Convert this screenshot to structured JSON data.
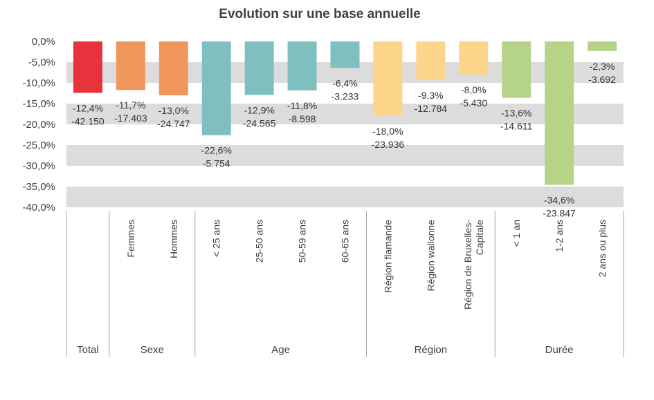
{
  "chart_data": {
    "type": "bar",
    "title": "Evolution sur une base annuelle",
    "xlabel": "",
    "ylabel": "",
    "ylim": [
      -40,
      0
    ],
    "yticks": [
      "0,0%",
      "-5,0%",
      "-10,0%",
      "-15,0%",
      "-20,0%",
      "-25,0%",
      "-30,0%",
      "-35,0%",
      "-40,0%"
    ],
    "grid": "alternating horizontal bands",
    "legend": "none",
    "categories": [
      {
        "label": "",
        "group": "Total",
        "value": -12.4,
        "pct_label": "-12,4%",
        "count_label": "-42.150",
        "color": "#E8323C"
      },
      {
        "label": "Femmes",
        "group": "Sexe",
        "value": -11.7,
        "pct_label": "-11,7%",
        "count_label": "-17.403",
        "color": "#F0975D"
      },
      {
        "label": "Hommes",
        "group": "Sexe",
        "value": -13.0,
        "pct_label": "-13,0%",
        "count_label": "-24.747",
        "color": "#F0975D"
      },
      {
        "label": "< 25 ans",
        "group": "Age",
        "value": -22.6,
        "pct_label": "-22,6%",
        "count_label": "-5.754",
        "color": "#7FBFBF"
      },
      {
        "label": "25-50 ans",
        "group": "Age",
        "value": -12.9,
        "pct_label": "-12,9%",
        "count_label": "-24.565",
        "color": "#7FBFBF"
      },
      {
        "label": "50-59 ans",
        "group": "Age",
        "value": -11.8,
        "pct_label": "-11,8%",
        "count_label": "-8.598",
        "color": "#7FBFBF"
      },
      {
        "label": "60-65 ans",
        "group": "Age",
        "value": -6.4,
        "pct_label": "-6,4%",
        "count_label": "-3.233",
        "color": "#7FBFBF"
      },
      {
        "label": "Région flamande",
        "group": "Région",
        "value": -18.0,
        "pct_label": "-18,0%",
        "count_label": "-23.936",
        "color": "#FDD58A"
      },
      {
        "label": "Région wallonne",
        "group": "Région",
        "value": -9.3,
        "pct_label": "-9,3%",
        "count_label": "-12.784",
        "color": "#FDD58A"
      },
      {
        "label": "Région de Bruxelles-Capitale",
        "label_lines": [
          "Région de Bruxelles-",
          "Capitale"
        ],
        "group": "Région",
        "value": -8.0,
        "pct_label": "-8,0%",
        "count_label": "-5.430",
        "color": "#FDD58A"
      },
      {
        "label": "< 1 an",
        "group": "Durée",
        "value": -13.6,
        "pct_label": "-13,6%",
        "count_label": "-14.611",
        "color": "#B5D488"
      },
      {
        "label": "1-2 ans",
        "group": "Durée",
        "value": -34.6,
        "pct_label": "-34,6%",
        "count_label": "-23.847",
        "color": "#B5D488"
      },
      {
        "label": "2 ans ou plus",
        "group": "Durée",
        "value": -2.3,
        "pct_label": "-2,3%",
        "count_label": "-3.692",
        "color": "#B5D488"
      }
    ],
    "groups": [
      {
        "name": "Total",
        "count": 1
      },
      {
        "name": "Sexe",
        "count": 2
      },
      {
        "name": "Age",
        "count": 4
      },
      {
        "name": "Région",
        "count": 3
      },
      {
        "name": "Durée",
        "count": 3
      }
    ]
  }
}
